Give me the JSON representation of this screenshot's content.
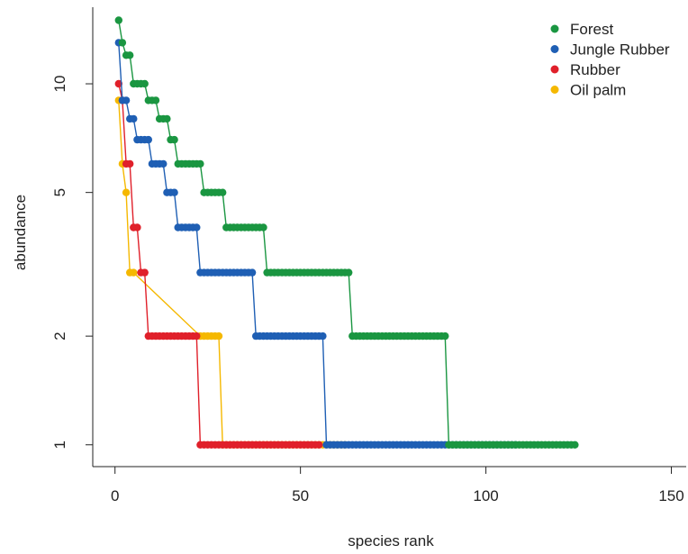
{
  "chart_data": {
    "type": "scatter",
    "xlabel": "species rank",
    "ylabel": "abundance",
    "xlim": [
      -6,
      154
    ],
    "ylim": [
      0.87,
      16.3
    ],
    "y_scale": "log",
    "x_ticks": [
      0,
      50,
      100,
      150
    ],
    "x_tick_labels": [
      "0",
      "50",
      "100",
      "150"
    ],
    "y_ticks": [
      1,
      2,
      5,
      10
    ],
    "y_tick_labels": [
      "1",
      "2",
      "5",
      "10"
    ],
    "grid": false,
    "legend_position": "top-right",
    "series": [
      {
        "name": "Forest",
        "color": "#1a9641",
        "runs": [
          {
            "value": 15,
            "start": 1,
            "end": 1
          },
          {
            "value": 13,
            "start": 2,
            "end": 2
          },
          {
            "value": 12,
            "start": 3,
            "end": 4
          },
          {
            "value": 10,
            "start": 5,
            "end": 8
          },
          {
            "value": 9,
            "start": 9,
            "end": 11
          },
          {
            "value": 8,
            "start": 12,
            "end": 14
          },
          {
            "value": 7,
            "start": 15,
            "end": 16
          },
          {
            "value": 6,
            "start": 17,
            "end": 23
          },
          {
            "value": 5,
            "start": 24,
            "end": 29
          },
          {
            "value": 4,
            "start": 30,
            "end": 40
          },
          {
            "value": 3,
            "start": 41,
            "end": 63
          },
          {
            "value": 2,
            "start": 64,
            "end": 89
          },
          {
            "value": 1,
            "start": 90,
            "end": 124
          }
        ]
      },
      {
        "name": "Jungle Rubber",
        "color": "#1f5fb4",
        "runs": [
          {
            "value": 13,
            "start": 1,
            "end": 1
          },
          {
            "value": 9,
            "start": 2,
            "end": 3
          },
          {
            "value": 8,
            "start": 4,
            "end": 5
          },
          {
            "value": 7,
            "start": 6,
            "end": 9
          },
          {
            "value": 6,
            "start": 10,
            "end": 13
          },
          {
            "value": 5,
            "start": 14,
            "end": 16
          },
          {
            "value": 4,
            "start": 17,
            "end": 22
          },
          {
            "value": 3,
            "start": 23,
            "end": 37
          },
          {
            "value": 2,
            "start": 38,
            "end": 56
          },
          {
            "value": 1,
            "start": 57,
            "end": 108
          }
        ]
      },
      {
        "name": "Rubber",
        "color": "#e0202a",
        "runs": [
          {
            "value": 10,
            "start": 1,
            "end": 1
          },
          {
            "value": 9,
            "start": 2,
            "end": 2
          },
          {
            "value": 6,
            "start": 3,
            "end": 4
          },
          {
            "value": 4,
            "start": 5,
            "end": 6
          },
          {
            "value": 3,
            "start": 7,
            "end": 8
          },
          {
            "value": 2,
            "start": 9,
            "end": 22
          },
          {
            "value": 1,
            "start": 23,
            "end": 55
          }
        ]
      },
      {
        "name": "Oil palm",
        "color": "#f5b800",
        "runs": [
          {
            "value": 9,
            "start": 1,
            "end": 1
          },
          {
            "value": 6,
            "start": 2,
            "end": 2
          },
          {
            "value": 5,
            "start": 3,
            "end": 3
          },
          {
            "value": 3,
            "start": 4,
            "end": 5
          },
          {
            "value": 2,
            "start": 23,
            "end": 28
          },
          {
            "value": 1,
            "start": 29,
            "end": 62
          }
        ]
      }
    ]
  }
}
